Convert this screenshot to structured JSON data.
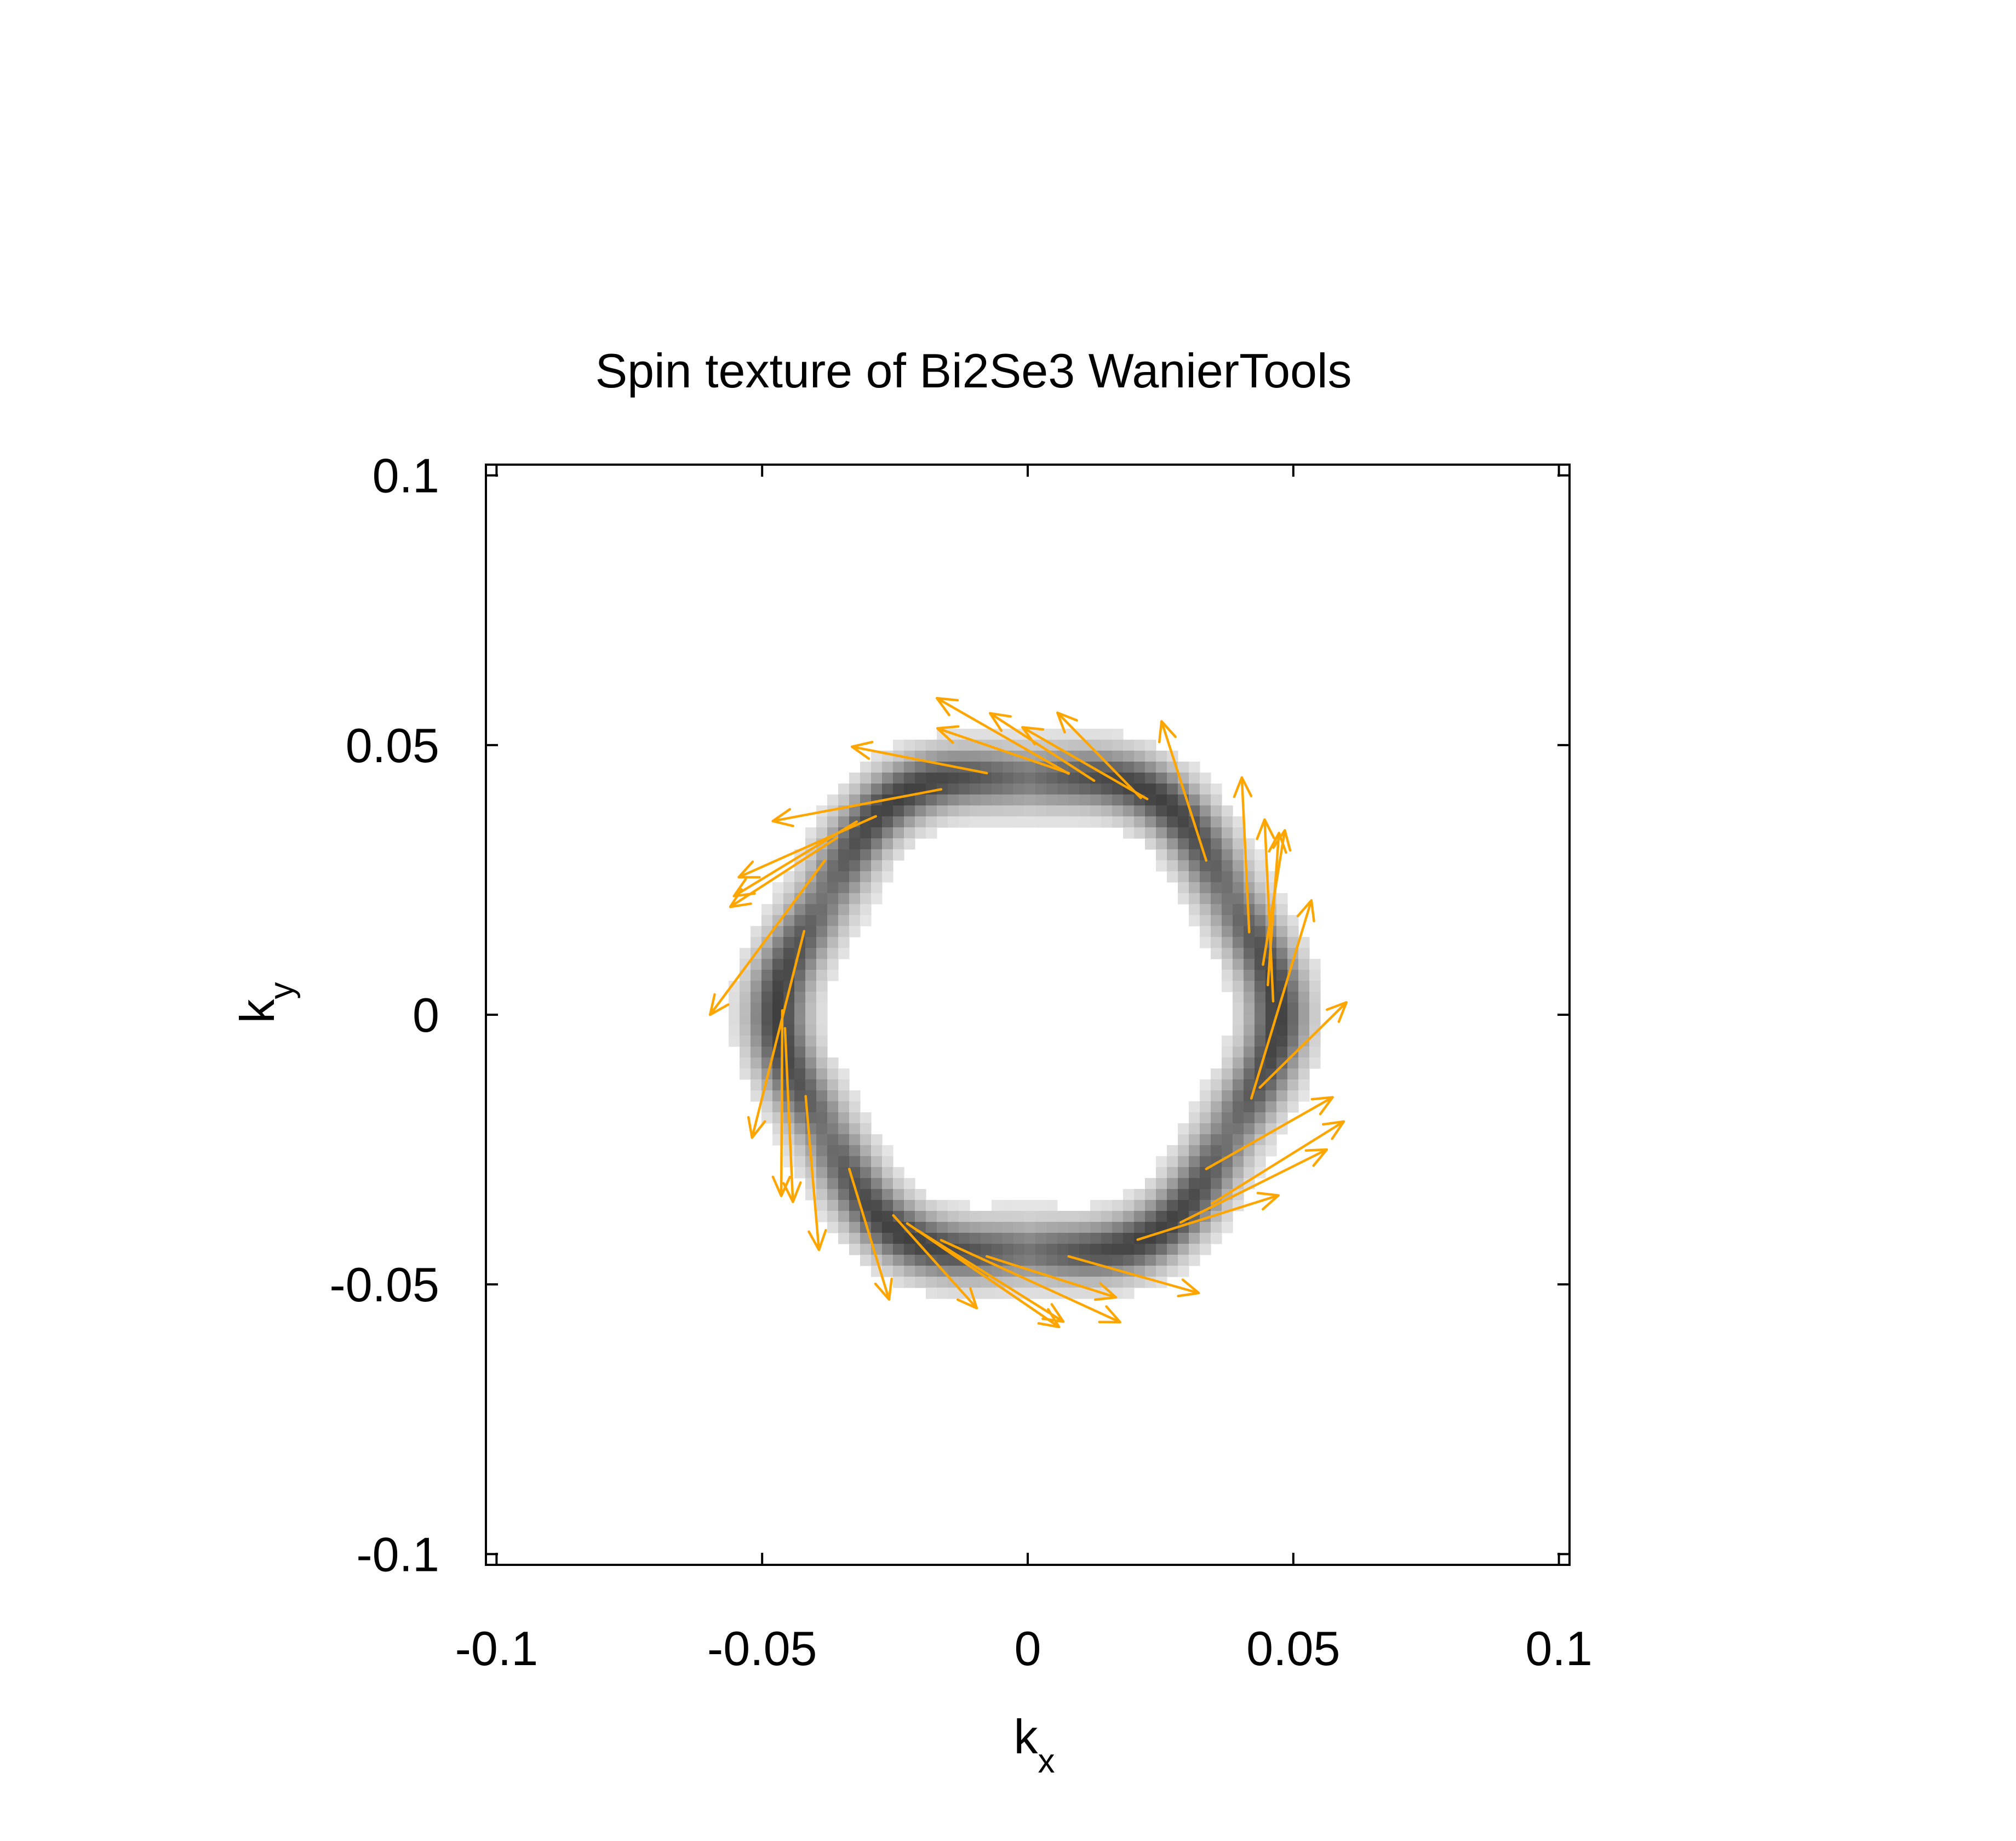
{
  "chart_data": {
    "type": "vector-field",
    "title": "Spin texture of Bi2Se3 WanierTools",
    "xlabel": {
      "base": "k",
      "sub": "x"
    },
    "ylabel": {
      "base": "k",
      "sub": "y"
    },
    "xlim": [
      -0.102,
      0.102
    ],
    "ylim": [
      -0.102,
      0.102
    ],
    "xticks": [
      {
        "value": -0.1,
        "label": "-0.1"
      },
      {
        "value": -0.05,
        "label": "-0.05"
      },
      {
        "value": 0,
        "label": "0"
      },
      {
        "value": 0.05,
        "label": "0.05"
      },
      {
        "value": 0.1,
        "label": "0.1"
      }
    ],
    "yticks": [
      {
        "value": -0.1,
        "label": "-0.1"
      },
      {
        "value": -0.05,
        "label": "-0.05"
      },
      {
        "value": 0,
        "label": "0"
      },
      {
        "value": 0.05,
        "label": "0.05"
      },
      {
        "value": 0.1,
        "label": "0.1"
      }
    ],
    "grid": false,
    "colors": {
      "arrow": "#ffa500",
      "frame": "#000000",
      "ring_dark": "#404040",
      "ring_light": "#f2f2f2"
    },
    "ring": {
      "center": [
        0,
        0
      ],
      "radius": 0.0455,
      "width": 0.004,
      "hexagonal_warping": 0.035
    },
    "arrows": [
      {
        "x": 0.0077,
        "y": 0.0447,
        "dx": -0.0248,
        "dy": 0.014
      },
      {
        "x": 0.0225,
        "y": 0.04,
        "dx": -0.0235,
        "dy": 0.0133
      },
      {
        "x": 0.0213,
        "y": 0.0402,
        "dx": -0.0157,
        "dy": 0.0158
      },
      {
        "x": 0.0336,
        "y": 0.0286,
        "dx": -0.0084,
        "dy": 0.0258
      },
      {
        "x": 0.0417,
        "y": 0.0153,
        "dx": -0.0014,
        "dy": 0.0287
      },
      {
        "x": 0.0462,
        "y": 0.0025,
        "dx": -0.0016,
        "dy": 0.0337
      },
      {
        "x": 0.0452,
        "y": 0.0055,
        "dx": 0.0021,
        "dy": 0.0282
      },
      {
        "x": 0.0443,
        "y": 0.0093,
        "dx": 0.0041,
        "dy": 0.0249
      },
      {
        "x": 0.0421,
        "y": -0.0155,
        "dx": 0.0113,
        "dy": 0.0367
      },
      {
        "x": 0.0437,
        "y": -0.0135,
        "dx": 0.0163,
        "dy": 0.0158
      },
      {
        "x": 0.0336,
        "y": -0.0286,
        "dx": 0.0238,
        "dy": 0.0133
      },
      {
        "x": 0.0347,
        "y": -0.035,
        "dx": 0.0248,
        "dy": 0.0152
      },
      {
        "x": 0.0288,
        "y": -0.0385,
        "dx": 0.0275,
        "dy": 0.0135
      },
      {
        "x": 0.0207,
        "y": -0.0417,
        "dx": 0.0265,
        "dy": 0.0082
      },
      {
        "x": 0.0077,
        "y": -0.0448,
        "dx": 0.0245,
        "dy": -0.0068
      },
      {
        "x": -0.0077,
        "y": -0.0448,
        "dx": 0.0243,
        "dy": -0.0076
      },
      {
        "x": -0.0163,
        "y": -0.0418,
        "dx": 0.0337,
        "dy": -0.0152
      },
      {
        "x": -0.0207,
        "y": -0.04,
        "dx": 0.0274,
        "dy": -0.0169
      },
      {
        "x": -0.0227,
        "y": -0.0387,
        "dx": 0.0286,
        "dy": -0.0192
      },
      {
        "x": -0.0253,
        "y": -0.0372,
        "dx": 0.0157,
        "dy": -0.0172
      },
      {
        "x": -0.0336,
        "y": -0.0286,
        "dx": 0.0075,
        "dy": -0.0242
      },
      {
        "x": -0.0418,
        "y": -0.0151,
        "dx": 0.0025,
        "dy": -0.0285
      },
      {
        "x": -0.0457,
        "y": -0.0025,
        "dx": 0.0015,
        "dy": -0.0322
      },
      {
        "x": -0.0462,
        "y": 0.0008,
        "dx": -0.0002,
        "dy": -0.0344
      },
      {
        "x": -0.0421,
        "y": 0.0155,
        "dx": -0.0098,
        "dy": -0.0383
      },
      {
        "x": -0.0382,
        "y": 0.0286,
        "dx": -0.0216,
        "dy": -0.0286
      },
      {
        "x": -0.0359,
        "y": 0.0328,
        "dx": -0.0201,
        "dy": -0.0128
      },
      {
        "x": -0.0322,
        "y": 0.0358,
        "dx": -0.0231,
        "dy": -0.0138
      },
      {
        "x": -0.0286,
        "y": 0.0368,
        "dx": -0.0258,
        "dy": -0.0113
      },
      {
        "x": -0.0163,
        "y": 0.0418,
        "dx": -0.0317,
        "dy": -0.0059
      },
      {
        "x": -0.0077,
        "y": 0.0448,
        "dx": -0.0254,
        "dy": 0.0049
      },
      {
        "x": 0.0077,
        "y": 0.0448,
        "dx": -0.0247,
        "dy": 0.0083
      },
      {
        "x": 0.0125,
        "y": 0.0434,
        "dx": -0.0196,
        "dy": 0.0125
      }
    ]
  }
}
